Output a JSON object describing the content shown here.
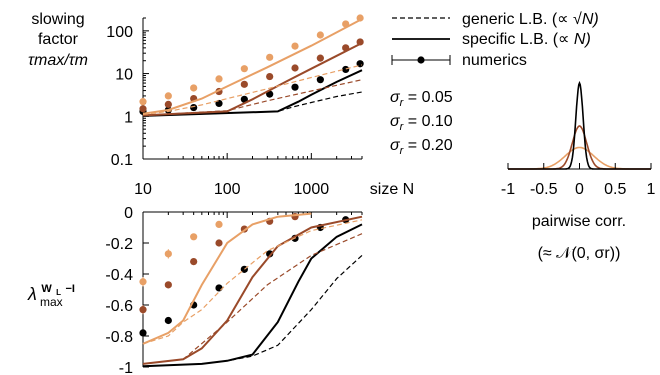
{
  "colors": {
    "s005": "#000000",
    "s010": "#9a4a2a",
    "s020": "#e8a066",
    "axis": "#000000"
  },
  "chart_data": [
    {
      "id": "top",
      "type": "line",
      "xscale": "log",
      "yscale": "log",
      "xlim": [
        10,
        4000
      ],
      "ylim": [
        0.1,
        200
      ],
      "xticks": [
        10,
        100,
        1000
      ],
      "xtick_labels": [
        "10",
        "100",
        "1000"
      ],
      "yticks": [
        0.1,
        1,
        10,
        100
      ],
      "ytick_labels": [
        "0.1",
        "1",
        "10",
        "100"
      ],
      "xlabel": "size N",
      "ylabel_lines": [
        "slowing",
        "factor",
        "τmax/τm"
      ],
      "series": [
        {
          "sigma": "0.05",
          "color_key": "s005",
          "numerics": {
            "x": [
              10,
              20,
              40,
              80,
              160,
              320,
              640,
              1280,
              2560,
              3800
            ],
            "y": [
              1.3,
              1.4,
              1.6,
              2.0,
              2.5,
              3.3,
              4.8,
              7.2,
              12.5,
              17
            ]
          },
          "generic": {
            "x": [
              10,
              400,
              600,
              1000,
              2000,
              4000
            ],
            "y": [
              1.02,
              1.3,
              1.65,
              2.1,
              2.9,
              3.7
            ]
          },
          "specific": {
            "x": [
              10,
              400,
              700,
              1000,
              2000,
              4000
            ],
            "y": [
              1.02,
              1.3,
              2.2,
              3.2,
              6.4,
              12
            ]
          }
        },
        {
          "sigma": "0.10",
          "color_key": "s010",
          "numerics": {
            "x": [
              10,
              20,
              40,
              80,
              160,
              320,
              640,
              1280,
              2560,
              3800
            ],
            "y": [
              1.5,
              1.9,
              2.6,
              3.8,
              5.6,
              8.5,
              13.5,
              23,
              40,
              55
            ]
          },
          "generic": {
            "x": [
              10,
              100,
              300,
              1000,
              2000,
              4000
            ],
            "y": [
              1.05,
              1.35,
              2.3,
              3.9,
              5.3,
              7.2
            ]
          },
          "specific": {
            "x": [
              10,
              100,
              200,
              500,
              1000,
              2000,
              4000
            ],
            "y": [
              1.05,
              1.3,
              2.5,
              6.5,
              13,
              26,
              52
            ]
          }
        },
        {
          "sigma": "0.20",
          "color_key": "s020",
          "numerics": {
            "x": [
              10,
              20,
              40,
              80,
              160,
              320,
              640,
              1280,
              2560,
              3800
            ],
            "y": [
              2.2,
              3.0,
              4.6,
              7.5,
              13,
              24,
              44,
              80,
              145,
              200
            ]
          },
          "generic": {
            "x": [
              10,
              20,
              50,
              100,
              300,
              1000,
              4000
            ],
            "y": [
              1.1,
              1.3,
              1.85,
              2.6,
              4.4,
              8.1,
              16
            ]
          },
          "specific": {
            "x": [
              10,
              20,
              50,
              100,
              300,
              1000,
              4000
            ],
            "y": [
              1.15,
              1.4,
              2.6,
              5,
              14,
              45,
              190
            ]
          }
        }
      ]
    },
    {
      "id": "bottom",
      "type": "line",
      "xscale": "log",
      "xlim": [
        10,
        4000
      ],
      "ylim": [
        -1,
        0
      ],
      "yticks": [
        0,
        -0.2,
        -0.4,
        -0.6,
        -0.8,
        -1
      ],
      "ytick_labels": [
        "0",
        "-0.2",
        "-0.4",
        "-0.6",
        "-0.8",
        "-1"
      ],
      "ylabel": "λ_max^(W_L − I)",
      "ylabel_main": "λ",
      "ylabel_sup": "W",
      "ylabel_sup_sub": "L",
      "ylabel_sup_rest": "−I",
      "ylabel_sub": "max",
      "series": [
        {
          "sigma": "0.05",
          "color_key": "s005",
          "numerics": {
            "x": [
              10,
              20,
              40,
              80,
              160,
              320,
              640,
              1280,
              2560
            ],
            "y": [
              -0.78,
              -0.7,
              -0.6,
              -0.49,
              -0.37,
              -0.27,
              -0.17,
              -0.1,
              -0.05
            ],
            "err": [
              0.03,
              0.02,
              0.02,
              0.02,
              0.015,
              0.01,
              0.01,
              0.01,
              0.01
            ]
          },
          "generic": {
            "x": [
              10,
              50,
              100,
              200,
              400,
              1000,
              2000,
              4000
            ],
            "y": [
              -0.995,
              -0.98,
              -0.96,
              -0.93,
              -0.86,
              -0.63,
              -0.43,
              -0.28
            ]
          },
          "specific": {
            "x": [
              10,
              50,
              100,
              200,
              400,
              700,
              1000,
              2000,
              4000
            ],
            "y": [
              -0.995,
              -0.98,
              -0.96,
              -0.92,
              -0.71,
              -0.45,
              -0.3,
              -0.16,
              -0.08
            ]
          }
        },
        {
          "sigma": "0.10",
          "color_key": "s010",
          "numerics": {
            "x": [
              10,
              20,
              40,
              80,
              160,
              320,
              640
            ],
            "y": [
              -0.63,
              -0.47,
              -0.32,
              -0.2,
              -0.11,
              -0.06,
              -0.03
            ],
            "err": [
              0.03,
              0.02,
              0.02,
              0.01,
              0.01,
              0.01,
              0.01
            ]
          },
          "generic": {
            "x": [
              10,
              30,
              100,
              300,
              1000,
              4000
            ],
            "y": [
              -0.98,
              -0.95,
              -0.71,
              -0.47,
              -0.28,
              -0.14
            ]
          },
          "specific": {
            "x": [
              10,
              30,
              50,
              100,
              200,
              400,
              1000,
              4000
            ],
            "y": [
              -0.98,
              -0.95,
              -0.88,
              -0.7,
              -0.42,
              -0.22,
              -0.1,
              -0.03
            ]
          }
        },
        {
          "sigma": "0.20",
          "color_key": "s020",
          "numerics": {
            "x": [
              10,
              20,
              40,
              80
            ],
            "y": [
              -0.45,
              -0.27,
              -0.16,
              -0.08
            ],
            "err": [
              0.03,
              0.03,
              0.02,
              0.01
            ]
          },
          "generic": {
            "x": [
              10,
              20,
              30,
              50,
              100,
              300,
              1000,
              4000
            ],
            "y": [
              -0.85,
              -0.8,
              -0.71,
              -0.63,
              -0.46,
              -0.25,
              -0.12,
              -0.05
            ]
          },
          "specific": {
            "x": [
              10,
              20,
              30,
              50,
              100,
              200,
              400,
              1000
            ],
            "y": [
              -0.85,
              -0.78,
              -0.7,
              -0.47,
              -0.2,
              -0.08,
              -0.03,
              -0.01
            ]
          }
        }
      ]
    },
    {
      "id": "inset",
      "type": "line",
      "xlim": [
        -1,
        1
      ],
      "xticks": [
        -1,
        -0.5,
        0,
        0.5,
        1
      ],
      "xtick_labels": [
        "-1",
        "-0.5",
        "0",
        "0.5",
        "1"
      ],
      "xlabel": "pairwise corr.",
      "xlabel2": "(≈ 𝒩(0, σr))",
      "distributions": [
        {
          "sigma": 0.05,
          "color_key": "s005"
        },
        {
          "sigma": 0.1,
          "color_key": "s010"
        },
        {
          "sigma": 0.2,
          "color_key": "s020"
        }
      ]
    }
  ],
  "legend": {
    "generic": "generic L.B. (∝ √N)",
    "generic_text": "generic L.B. (",
    "generic_math": "∝ √N)",
    "specific": "specific L.B. (∝ N)",
    "specific_text": "specific L.B. (",
    "specific_math": "∝ N)",
    "numerics": "numerics",
    "sigma_items": [
      {
        "label": "σr = 0.05",
        "sym": "σ",
        "sub": "r",
        "val": " = 0.05",
        "color_key": "s005"
      },
      {
        "label": "σr = 0.10",
        "sym": "σ",
        "sub": "r",
        "val": " = 0.10",
        "color_key": "s010"
      },
      {
        "label": "σr = 0.20",
        "sym": "σ",
        "sub": "r",
        "val": " = 0.20",
        "color_key": "s020"
      }
    ]
  }
}
